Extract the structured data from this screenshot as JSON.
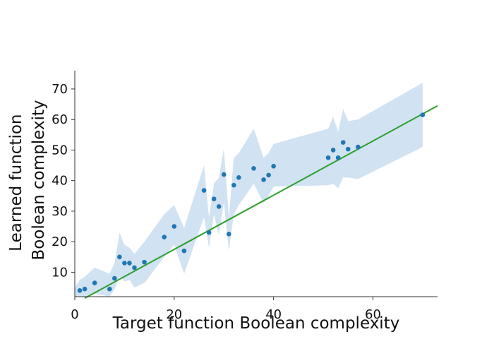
{
  "chart_data": {
    "type": "scatter",
    "title": "",
    "xlabel": "Target function Boolean complexity",
    "ylabel": [
      "Learned function",
      "Boolean complexity"
    ],
    "xlim": [
      0,
      73
    ],
    "ylim": [
      2,
      76
    ],
    "xticks": [
      0,
      20,
      40,
      60
    ],
    "yticks": [
      10,
      20,
      30,
      40,
      50,
      60,
      70
    ],
    "grid": false,
    "legend": "none",
    "colors": {
      "points": "#1f77b4",
      "band": "#c6dbef",
      "line": "#2ca02c",
      "axis": "#333333"
    },
    "series": [
      {
        "values": [
          {
            "x": 1,
            "y": 4
          },
          {
            "x": 2,
            "y": 4.5
          },
          {
            "x": 4,
            "y": 6.5
          },
          {
            "x": 7,
            "y": 4.5
          },
          {
            "x": 8,
            "y": 8
          },
          {
            "x": 9,
            "y": 15
          },
          {
            "x": 10,
            "y": 13
          },
          {
            "x": 11,
            "y": 13
          },
          {
            "x": 12,
            "y": 11.5
          },
          {
            "x": 14,
            "y": 13.3
          },
          {
            "x": 18,
            "y": 21.5
          },
          {
            "x": 20,
            "y": 25
          },
          {
            "x": 22,
            "y": 17
          },
          {
            "x": 26,
            "y": 36.8
          },
          {
            "x": 27,
            "y": 23
          },
          {
            "x": 28,
            "y": 34
          },
          {
            "x": 29,
            "y": 31.5
          },
          {
            "x": 30,
            "y": 42
          },
          {
            "x": 31,
            "y": 22.5
          },
          {
            "x": 32,
            "y": 38.5
          },
          {
            "x": 33,
            "y": 41
          },
          {
            "x": 36,
            "y": 44
          },
          {
            "x": 38,
            "y": 40.3
          },
          {
            "x": 39,
            "y": 41.8
          },
          {
            "x": 40,
            "y": 44.7
          },
          {
            "x": 51,
            "y": 47.5
          },
          {
            "x": 52,
            "y": 50
          },
          {
            "x": 53,
            "y": 47.5
          },
          {
            "x": 54,
            "y": 52.5
          },
          {
            "x": 55,
            "y": 50.3
          },
          {
            "x": 57,
            "y": 51
          },
          {
            "x": 70,
            "y": 61.5
          }
        ]
      }
    ],
    "band": [
      {
        "x": 0,
        "low": 1,
        "high": 5
      },
      {
        "x": 1,
        "low": 1.5,
        "high": 7.5
      },
      {
        "x": 2,
        "low": 2,
        "high": 8.5
      },
      {
        "x": 4,
        "low": 3,
        "high": 11.5
      },
      {
        "x": 7,
        "low": 2,
        "high": 9.5
      },
      {
        "x": 8,
        "low": 4.5,
        "high": 13
      },
      {
        "x": 9,
        "low": 8.5,
        "high": 23
      },
      {
        "x": 10,
        "low": 7,
        "high": 19
      },
      {
        "x": 11,
        "low": 7.5,
        "high": 18
      },
      {
        "x": 12,
        "low": 5,
        "high": 16
      },
      {
        "x": 14,
        "low": 6.5,
        "high": 20
      },
      {
        "x": 18,
        "low": 15,
        "high": 29
      },
      {
        "x": 20,
        "low": 19,
        "high": 32
      },
      {
        "x": 22,
        "low": 9.5,
        "high": 24.5
      },
      {
        "x": 26,
        "low": 28,
        "high": 45
      },
      {
        "x": 27,
        "low": 18,
        "high": 28
      },
      {
        "x": 28,
        "low": 29,
        "high": 39
      },
      {
        "x": 29,
        "low": 22,
        "high": 41
      },
      {
        "x": 30,
        "low": 33,
        "high": 50.5
      },
      {
        "x": 31,
        "low": 17,
        "high": 28
      },
      {
        "x": 32,
        "low": 29,
        "high": 47.5
      },
      {
        "x": 33,
        "low": 32,
        "high": 49
      },
      {
        "x": 36,
        "low": 39,
        "high": 57
      },
      {
        "x": 38,
        "low": 32.5,
        "high": 47.5
      },
      {
        "x": 39,
        "low": 35,
        "high": 49
      },
      {
        "x": 40,
        "low": 38,
        "high": 52
      },
      {
        "x": 51,
        "low": 38.5,
        "high": 57
      },
      {
        "x": 52,
        "low": 39,
        "high": 61
      },
      {
        "x": 53,
        "low": 37.5,
        "high": 56
      },
      {
        "x": 54,
        "low": 41,
        "high": 63.5
      },
      {
        "x": 55,
        "low": 41,
        "high": 59.5
      },
      {
        "x": 57,
        "low": 40.5,
        "high": 60
      },
      {
        "x": 70,
        "low": 51,
        "high": 72
      }
    ],
    "fit_line": {
      "x": [
        2,
        73
      ],
      "y": [
        1.5,
        64.5
      ]
    }
  }
}
